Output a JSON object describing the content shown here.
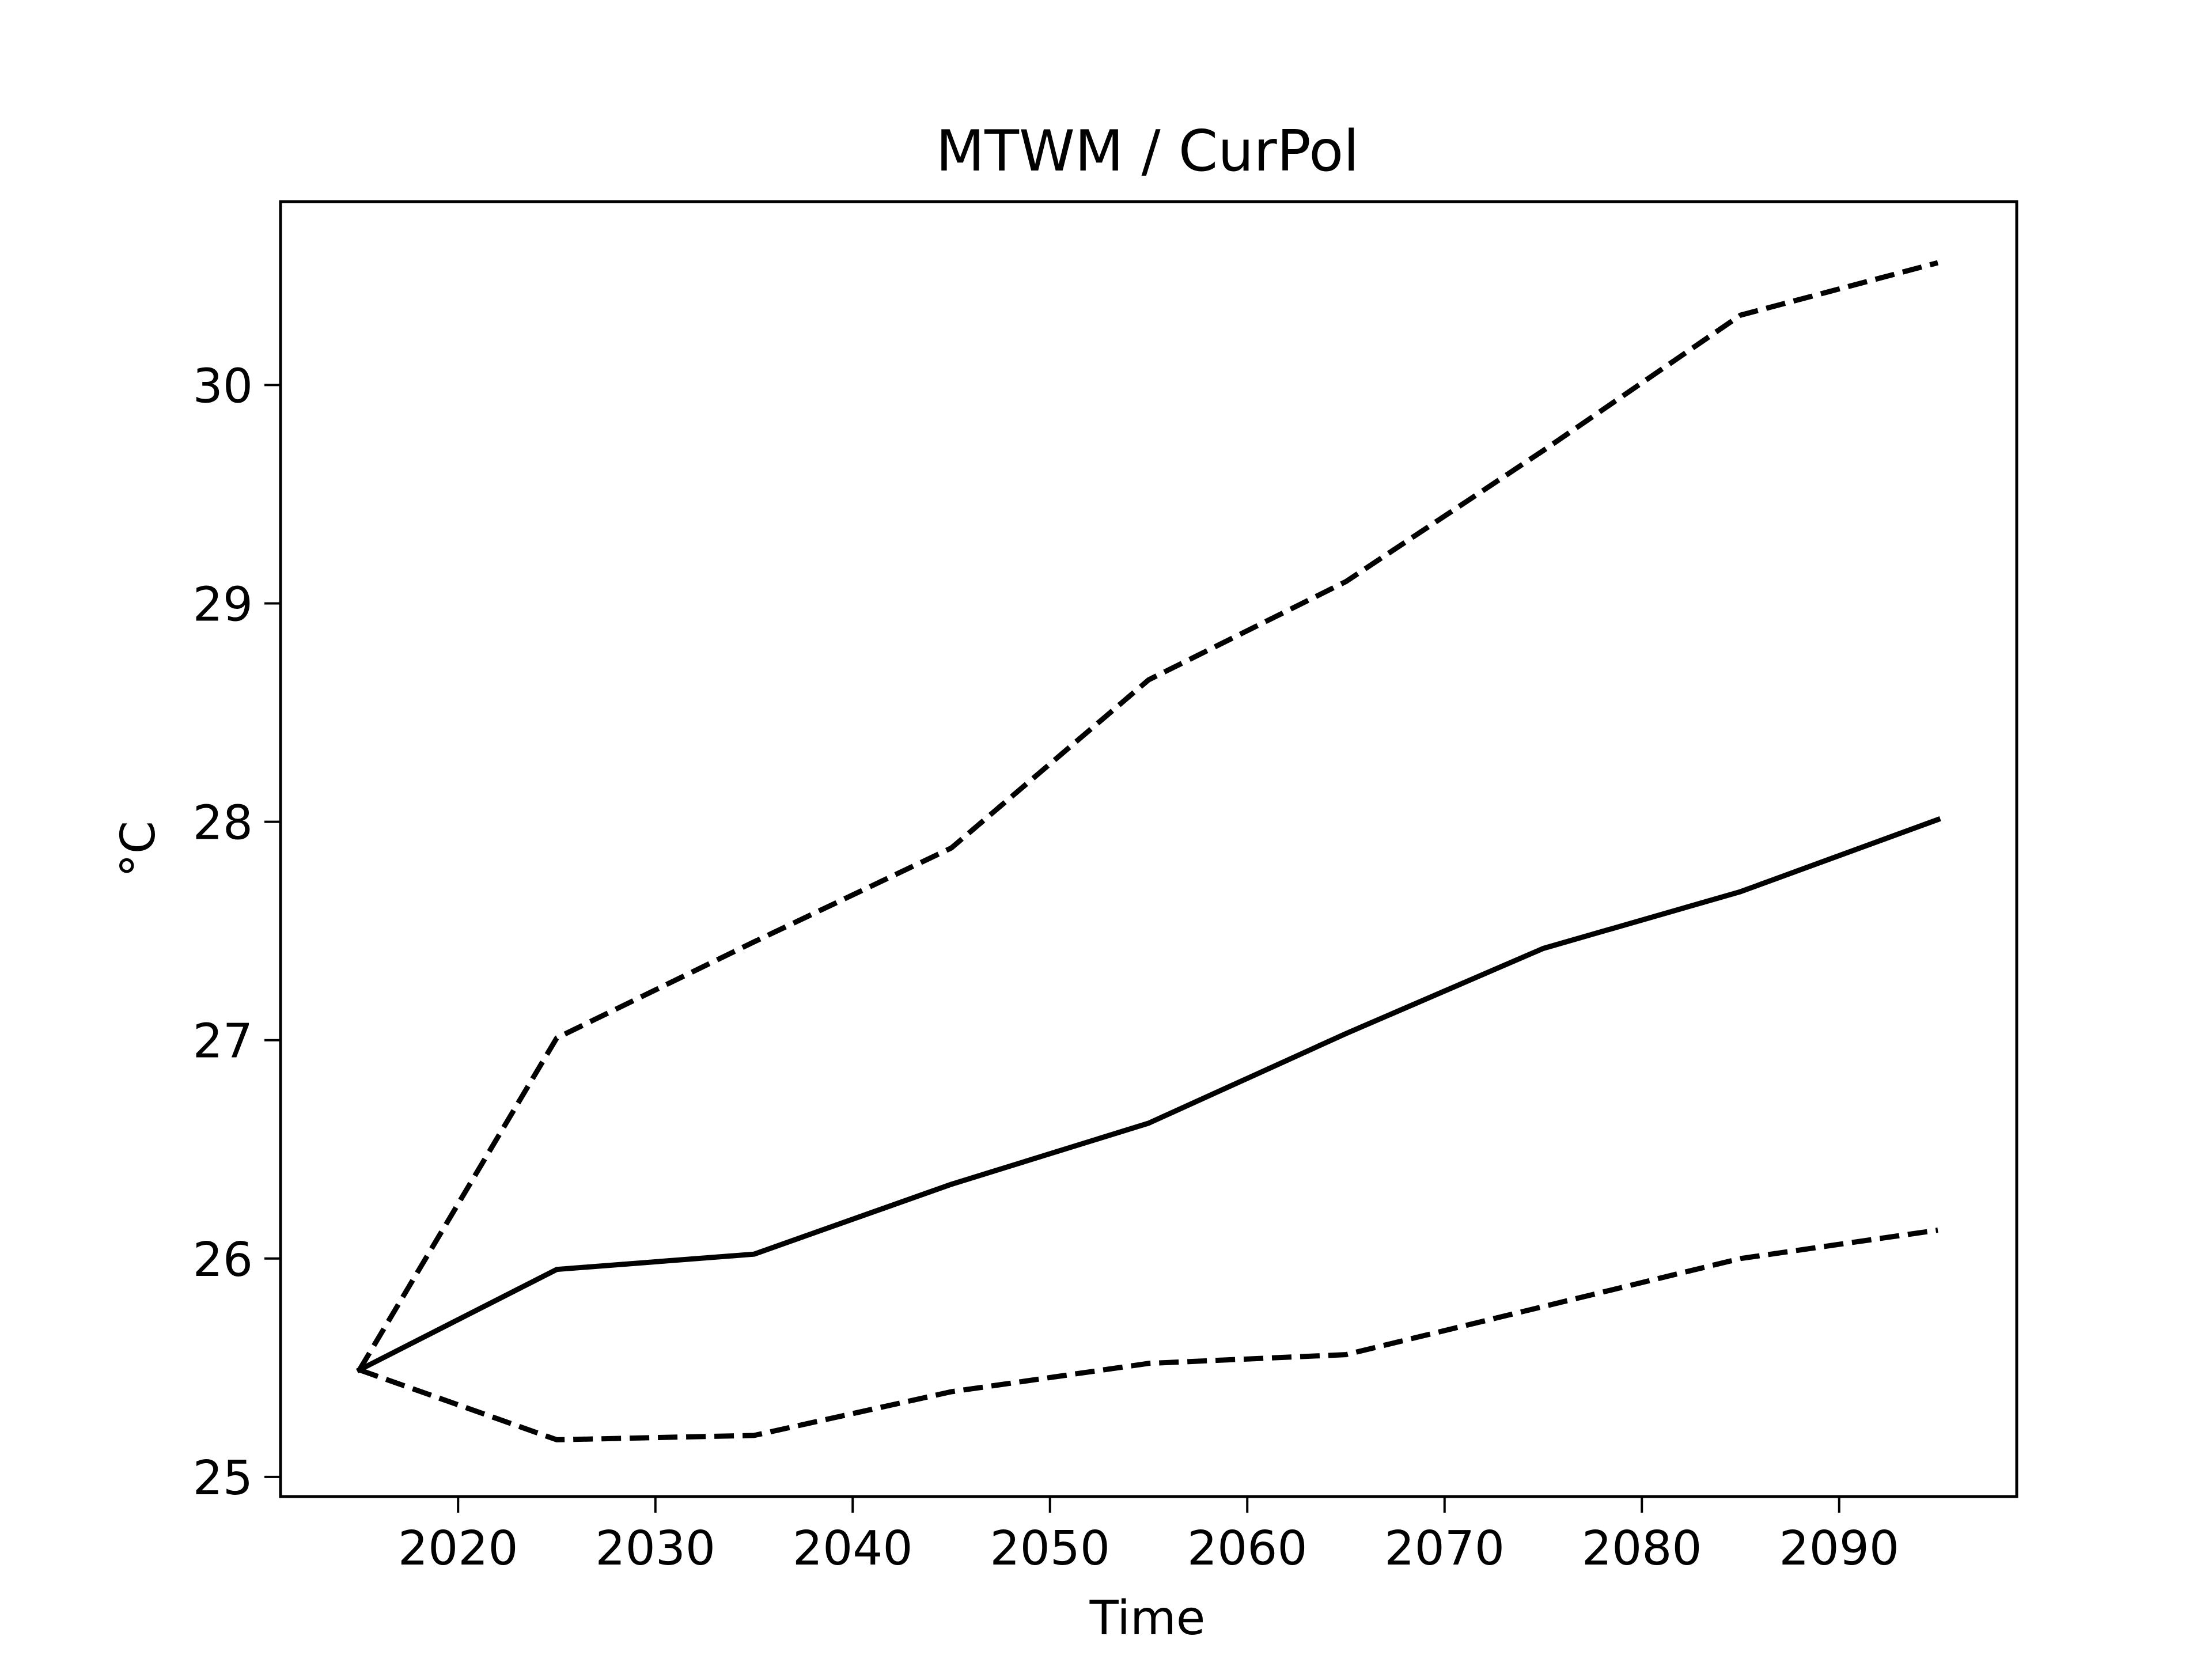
{
  "chart_data": {
    "type": "line",
    "title": "MTWM / CurPol",
    "xlabel": "Time",
    "ylabel": "°C",
    "x": [
      2015,
      2025,
      2035,
      2045,
      2055,
      2065,
      2075,
      2085,
      2095
    ],
    "series": [
      {
        "style": "dashed",
        "color": "#000000",
        "values": [
          25.49,
          27.01,
          27.45,
          27.88,
          28.65,
          29.1,
          29.7,
          30.32,
          30.56
        ]
      },
      {
        "style": "solid",
        "color": "#000000",
        "values": [
          25.49,
          25.95,
          26.02,
          26.34,
          26.62,
          27.03,
          27.42,
          27.68,
          28.01
        ]
      },
      {
        "style": "dashed",
        "color": "#000000",
        "values": [
          25.49,
          25.17,
          25.19,
          25.39,
          25.52,
          25.56,
          25.78,
          26.0,
          26.13
        ]
      }
    ],
    "xlim": [
      2011,
      2099
    ],
    "ylim": [
      24.91,
      30.84
    ],
    "xticks": [
      "2020",
      "2030",
      "2040",
      "2050",
      "2060",
      "2070",
      "2080",
      "2090"
    ],
    "yticks": [
      "25",
      "26",
      "27",
      "28",
      "29",
      "30"
    ],
    "grid": false,
    "legend": "none"
  }
}
